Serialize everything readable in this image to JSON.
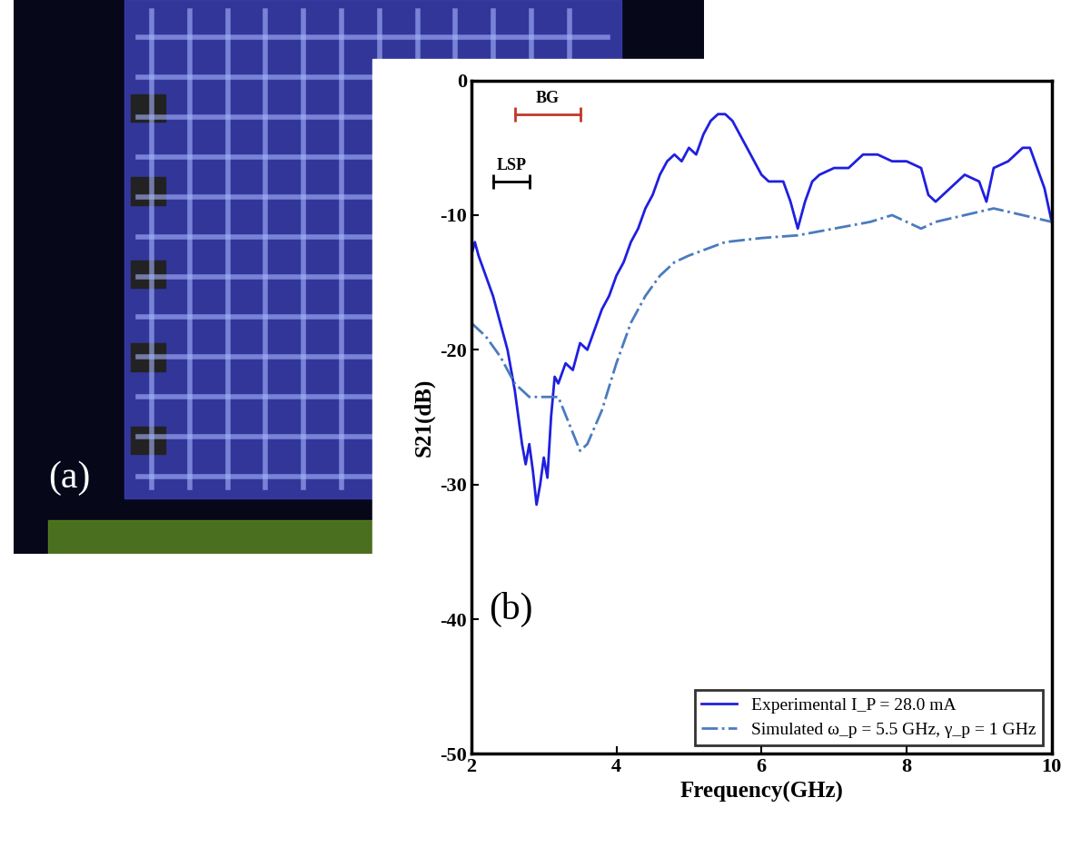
{
  "photo": {
    "label": "(a)"
  },
  "chart_data": {
    "type": "line",
    "panel_label": "(b)",
    "x_label": "Frequency(GHz)",
    "y_label": "S21(dB)",
    "xlim": [
      2,
      10
    ],
    "xticks": [
      2,
      4,
      6,
      8,
      10
    ],
    "ylim": [
      -50,
      0
    ],
    "yticks": [
      -50,
      -40,
      -30,
      -20,
      -10,
      0
    ],
    "legend": "lower right",
    "annotations": [
      {
        "text": "BG",
        "x": [
          2.6,
          3.5
        ],
        "y": -2.5,
        "color": "#c0392b"
      },
      {
        "text": "LSP",
        "x": [
          2.3,
          2.8
        ],
        "y": -7.5,
        "color": "#000000"
      }
    ],
    "series": [
      {
        "name": "Experimental I_P = 28.0 mA",
        "color": "#1f1fe0",
        "line_style": "solid",
        "x": [
          2.0,
          2.05,
          2.1,
          2.2,
          2.3,
          2.4,
          2.5,
          2.6,
          2.7,
          2.75,
          2.8,
          2.85,
          2.9,
          2.95,
          3.0,
          3.05,
          3.1,
          3.15,
          3.2,
          3.3,
          3.4,
          3.5,
          3.6,
          3.7,
          3.8,
          3.9,
          4.0,
          4.1,
          4.2,
          4.3,
          4.4,
          4.5,
          4.6,
          4.7,
          4.8,
          4.9,
          5.0,
          5.1,
          5.2,
          5.3,
          5.4,
          5.5,
          5.6,
          5.7,
          5.8,
          5.9,
          6.0,
          6.1,
          6.2,
          6.3,
          6.4,
          6.5,
          6.6,
          6.7,
          6.8,
          7.0,
          7.2,
          7.4,
          7.6,
          7.8,
          8.0,
          8.2,
          8.3,
          8.4,
          8.6,
          8.8,
          9.0,
          9.1,
          9.2,
          9.4,
          9.6,
          9.7,
          9.8,
          9.9,
          10.0
        ],
        "values": [
          -13,
          -12,
          -13,
          -14.5,
          -16,
          -18,
          -20,
          -23,
          -27,
          -28.5,
          -27,
          -29,
          -31.5,
          -30,
          -28,
          -29.5,
          -25,
          -22,
          -22.5,
          -21,
          -21.5,
          -19.5,
          -20,
          -18.5,
          -17,
          -16,
          -14.5,
          -13.5,
          -12,
          -11,
          -9.5,
          -8.5,
          -7,
          -6,
          -5.5,
          -6,
          -5,
          -5.5,
          -4,
          -3,
          -2.5,
          -2.5,
          -3,
          -4,
          -5,
          -6,
          -7,
          -7.5,
          -7.5,
          -7.5,
          -9,
          -11,
          -9,
          -7.5,
          -7,
          -6.5,
          -6.5,
          -5.5,
          -5.5,
          -6,
          -6,
          -6.5,
          -8.5,
          -9,
          -8,
          -7,
          -7.5,
          -9,
          -6.5,
          -6,
          -5,
          -5,
          -6.5,
          -8,
          -10.5
        ]
      },
      {
        "name": "Simulated ω_p = 5.5 GHz, γ_p = 1 GHz",
        "color": "#4a7bbf",
        "line_style": "dashdot",
        "x": [
          2.0,
          2.2,
          2.4,
          2.6,
          2.8,
          3.0,
          3.2,
          3.35,
          3.5,
          3.6,
          3.8,
          4.0,
          4.2,
          4.4,
          4.6,
          4.8,
          5.0,
          5.5,
          6.0,
          6.5,
          7.0,
          7.5,
          7.8,
          8.0,
          8.2,
          8.4,
          8.8,
          9.2,
          9.6,
          10.0
        ],
        "values": [
          -18,
          -19,
          -20.5,
          -22.5,
          -23.5,
          -23.5,
          -23.5,
          -25.5,
          -27.5,
          -27,
          -24.5,
          -21,
          -18,
          -16,
          -14.5,
          -13.5,
          -13,
          -12,
          -11.7,
          -11.5,
          -11,
          -10.5,
          -10,
          -10.5,
          -11,
          -10.5,
          -10,
          -9.5,
          -10,
          -10.5
        ]
      }
    ]
  }
}
